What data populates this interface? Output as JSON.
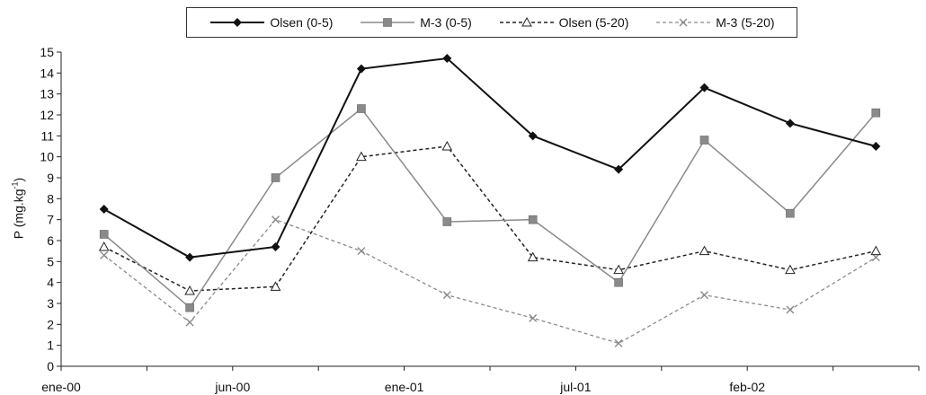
{
  "chart_data": {
    "type": "line",
    "title": "",
    "xlabel": "",
    "ylabel": "P (mg.kg",
    "ylabel_sup": "-1",
    "ylabel_close": ")",
    "ylim": [
      0,
      15
    ],
    "yticks": [
      0,
      1,
      2,
      3,
      4,
      5,
      6,
      7,
      8,
      9,
      10,
      11,
      12,
      13,
      14,
      15
    ],
    "x_tick_labels": [
      "ene-00",
      "jun-00",
      "ene-01",
      "jul-01",
      "feb-02"
    ],
    "grid": false,
    "legend_position": "top",
    "x": [
      1,
      2,
      3,
      4,
      5,
      6,
      7,
      8,
      9,
      10
    ],
    "series": [
      {
        "name": "Olsen (0-5)",
        "marker": "diamond",
        "style": "solid",
        "color": "#111111",
        "values": [
          7.5,
          5.2,
          5.7,
          14.2,
          14.7,
          11.0,
          9.4,
          13.3,
          11.6,
          10.5
        ]
      },
      {
        "name": "M-3 (0-5)",
        "marker": "square",
        "style": "solid",
        "color": "#8a8a8a",
        "values": [
          6.3,
          2.8,
          9.0,
          12.3,
          6.9,
          7.0,
          4.0,
          10.8,
          7.3,
          12.1
        ]
      },
      {
        "name": "Olsen (5-20)",
        "marker": "triangle",
        "style": "dashed",
        "color": "#222222",
        "values": [
          5.7,
          3.6,
          3.8,
          10.0,
          10.5,
          5.2,
          4.6,
          5.5,
          4.6,
          5.5
        ]
      },
      {
        "name": "M-3 (5-20)",
        "marker": "x",
        "style": "dashed",
        "color": "#8a8a8a",
        "values": [
          5.3,
          2.1,
          7.0,
          5.5,
          3.4,
          2.3,
          1.1,
          3.4,
          2.7,
          5.2
        ]
      }
    ]
  }
}
